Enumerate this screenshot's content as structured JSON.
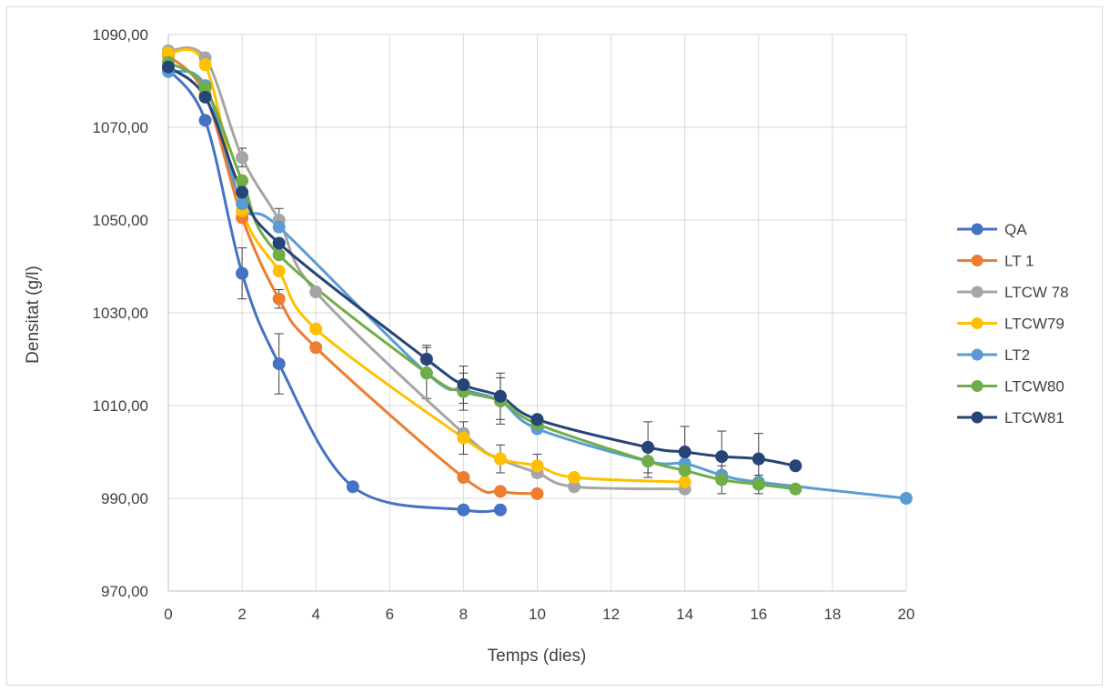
{
  "chart_data": {
    "type": "line",
    "title": "",
    "xlabel": "Temps (dies)",
    "ylabel": "Densitat (g/l)",
    "xlim": [
      0,
      20
    ],
    "ylim": [
      970,
      1090
    ],
    "xticks": [
      "0",
      "2",
      "4",
      "6",
      "8",
      "10",
      "12",
      "14",
      "16",
      "18",
      "20"
    ],
    "yticks": [
      "970,00",
      "990,00",
      "1010,00",
      "1030,00",
      "1050,00",
      "1070,00",
      "1090,00"
    ],
    "grid": "on",
    "legend_position": "right",
    "series": [
      {
        "name": "QA",
        "color": "#4472C4",
        "x": [
          0,
          1,
          2,
          3,
          5,
          8,
          9
        ],
        "y": [
          1082.5,
          1071.5,
          1038.5,
          1019,
          992.5,
          987.5,
          987.5
        ],
        "err": [
          0,
          0,
          5.5,
          6.5,
          0,
          0,
          0
        ]
      },
      {
        "name": "LT 1",
        "color": "#ED7D31",
        "x": [
          0,
          1,
          2,
          3,
          4,
          8,
          9,
          10
        ],
        "y": [
          1085.5,
          1077,
          1050.5,
          1033,
          1022.5,
          994.5,
          991.5,
          991
        ],
        "err": [
          0,
          0,
          0,
          2,
          0,
          0,
          0,
          0
        ]
      },
      {
        "name": "LTCW 78",
        "color": "#A5A5A5",
        "x": [
          0,
          1,
          2,
          3,
          4,
          8,
          9,
          10,
          11,
          14
        ],
        "y": [
          1086.5,
          1085,
          1063.5,
          1050,
          1034.5,
          1004,
          998.5,
          995.5,
          992.5,
          992
        ],
        "err": [
          0,
          0,
          2,
          2.5,
          0,
          0,
          0,
          0,
          0,
          0
        ]
      },
      {
        "name": "LTCW79",
        "color": "#FFC000",
        "x": [
          0,
          1,
          2,
          3,
          4,
          8,
          9,
          10,
          11,
          14
        ],
        "y": [
          1086,
          1083.5,
          1052,
          1039,
          1026.5,
          1003,
          998.5,
          997,
          994.5,
          993.5
        ],
        "err": [
          0,
          0,
          0,
          0,
          0,
          3.5,
          3,
          2.5,
          0,
          0
        ]
      },
      {
        "name": "LT2",
        "color": "#5B9BD5",
        "x": [
          0,
          1,
          2,
          3,
          7,
          8,
          9,
          10,
          13,
          14,
          15,
          16,
          20
        ],
        "y": [
          1082,
          1079,
          1053.5,
          1048.5,
          1017,
          1013.5,
          1011,
          1005,
          998,
          997.5,
          995,
          993.5,
          990
        ],
        "err": [
          0,
          0,
          0,
          0,
          0,
          0,
          0,
          0,
          0,
          0,
          0,
          0,
          0
        ]
      },
      {
        "name": "LTCW80",
        "color": "#70AD47",
        "x": [
          0,
          1,
          2,
          3,
          7,
          8,
          9,
          10,
          13,
          14,
          15,
          16,
          17
        ],
        "y": [
          1084,
          1078.5,
          1058.5,
          1042.5,
          1017,
          1013,
          1011,
          1006,
          998,
          996,
          994,
          993,
          992
        ],
        "err": [
          0,
          0,
          0,
          0,
          5.5,
          4,
          5,
          0,
          3.5,
          0,
          3,
          2,
          0
        ]
      },
      {
        "name": "LTCW81",
        "color": "#264478",
        "x": [
          0,
          1,
          2,
          3,
          7,
          8,
          9,
          10,
          13,
          14,
          15,
          16,
          17
        ],
        "y": [
          1083,
          1076.5,
          1056,
          1045,
          1020,
          1014.5,
          1012,
          1007,
          1001,
          1000,
          999,
          998.5,
          997
        ],
        "err": [
          0,
          0,
          0,
          0,
          3,
          4,
          5,
          0,
          5.5,
          5.5,
          5.5,
          5.5,
          0
        ]
      }
    ]
  }
}
